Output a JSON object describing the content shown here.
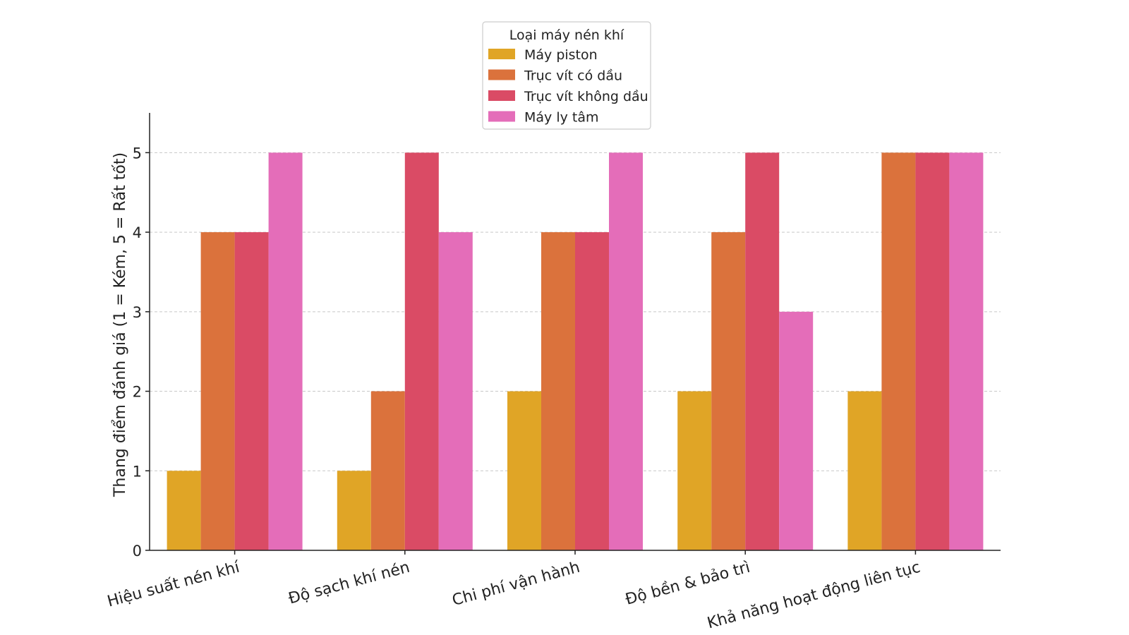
{
  "chart_data": {
    "type": "bar",
    "title": "",
    "xlabel": "",
    "ylabel": "Thang điểm đánh giá (1 = Kém, 5 = Rất tốt)",
    "ylim": [
      0,
      5.5
    ],
    "yticks": [
      0,
      1,
      2,
      3,
      4,
      5
    ],
    "grid": "horizontal dashed",
    "categories": [
      "Hiệu suất nén khí",
      "Độ sạch khí nén",
      "Chi phí vận hành",
      "Độ bền & bảo trì",
      "Khả năng hoạt động liên tục"
    ],
    "legend": {
      "title": "Loại máy nén khí",
      "placement": "top-center"
    },
    "series": [
      {
        "name": "Máy piston",
        "color": "#E0A526",
        "values": [
          1,
          1,
          2,
          2,
          2
        ]
      },
      {
        "name": "Trục vít có dầu",
        "color": "#DB723C",
        "values": [
          4,
          2,
          4,
          4,
          5
        ]
      },
      {
        "name": "Trục vít không dầu",
        "color": "#DA4B65",
        "values": [
          4,
          5,
          4,
          5,
          5
        ]
      },
      {
        "name": "Máy ly tâm",
        "color": "#E46DB9",
        "values": [
          5,
          4,
          5,
          3,
          5
        ]
      }
    ]
  }
}
